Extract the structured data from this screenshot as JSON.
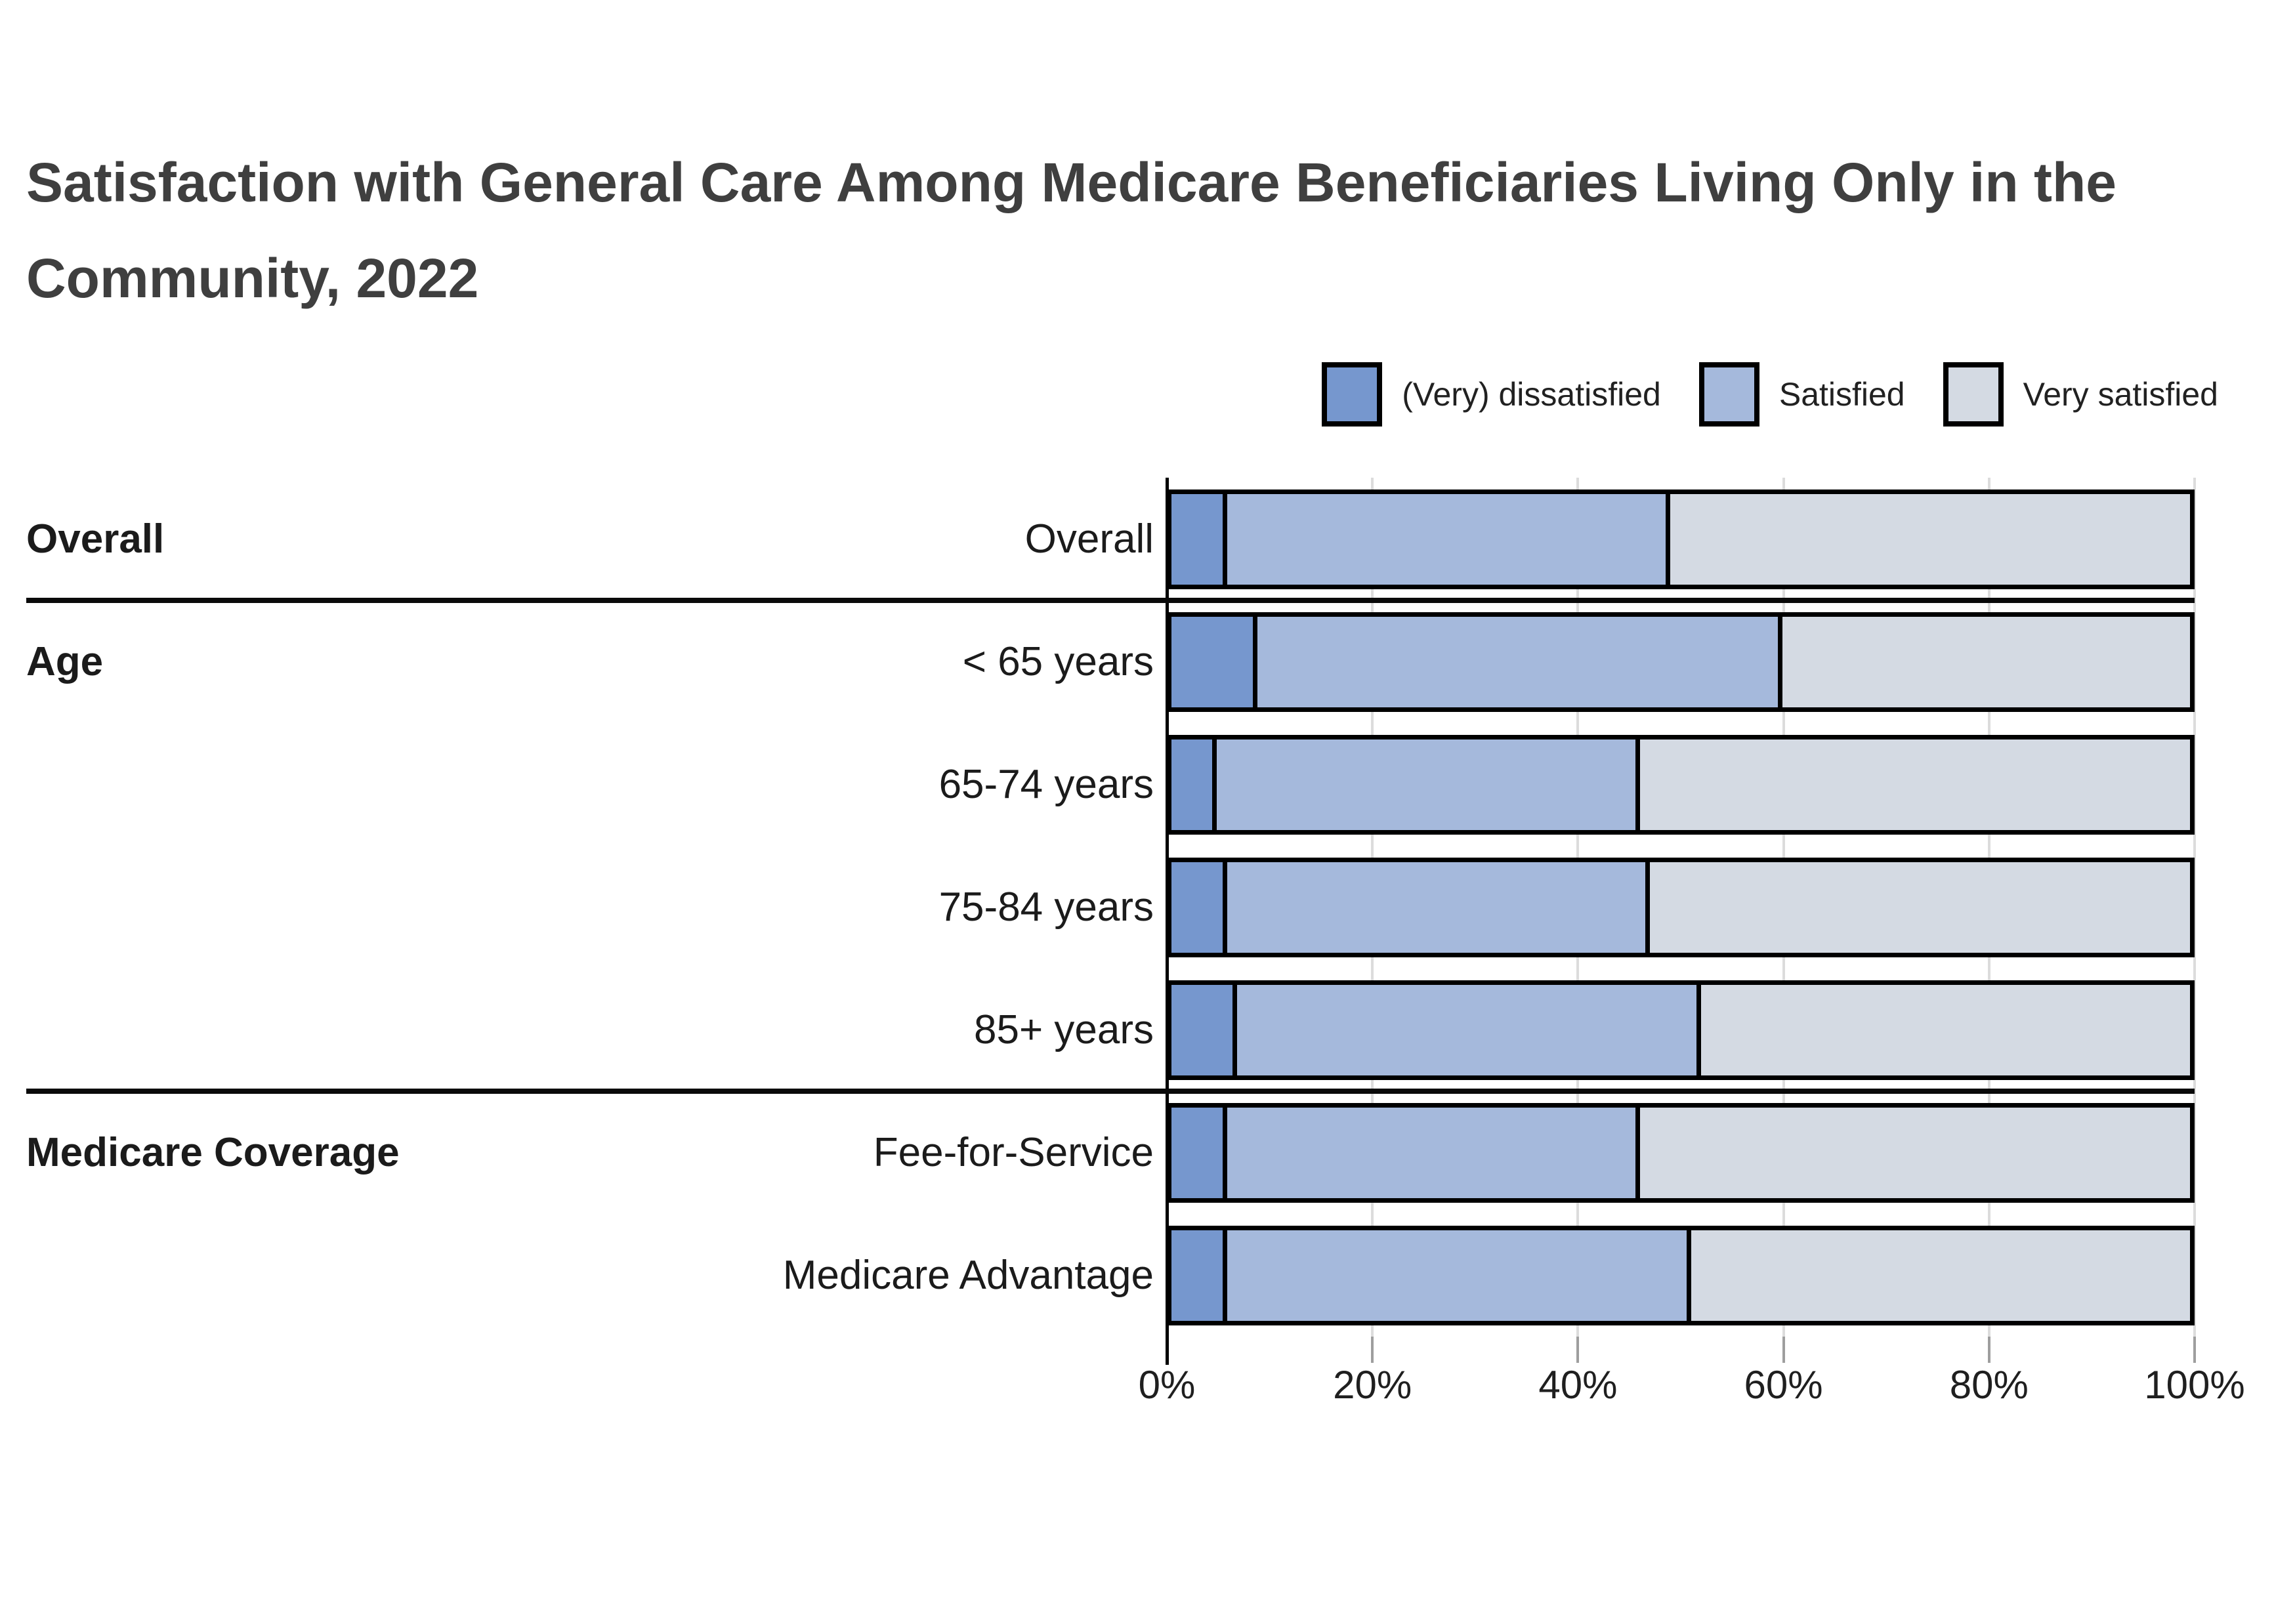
{
  "title": "Satisfaction with General Care Among Medicare Beneficiaries Living Only in the Community, 2022",
  "legend": [
    {
      "label": "(Very) dissatisfied",
      "color": "#7697CE"
    },
    {
      "label": "Satisfied",
      "color": "#A5B9DC"
    },
    {
      "label": "Very satisfied",
      "color": "#D4DAE3"
    }
  ],
  "groups": [
    {
      "label": "Overall",
      "row_index": 0
    },
    {
      "label": "Age",
      "row_index": 1
    },
    {
      "label": "Medicare Coverage",
      "row_index": 5
    }
  ],
  "chart_data": {
    "type": "bar",
    "orientation": "horizontal",
    "stacked": true,
    "title": "Satisfaction with General Care Among Medicare Beneficiaries Living Only in the Community, 2022",
    "categories": [
      "Overall",
      "< 65 years",
      "65-74 years",
      "75-84 years",
      "85+ years",
      "Fee-for-Service",
      "Medicare Advantage"
    ],
    "series": [
      {
        "name": "(Very) dissatisfied",
        "color": "#7697CE",
        "values": [
          5,
          8,
          4,
          5,
          6,
          5,
          5
        ]
      },
      {
        "name": "Satisfied",
        "color": "#A5B9DC",
        "values": [
          44,
          52,
          42,
          42,
          46,
          41,
          46
        ]
      },
      {
        "name": "Very satisfied",
        "color": "#D4DAE3",
        "values": [
          51,
          40,
          54,
          53,
          48,
          54,
          49
        ]
      }
    ],
    "xlabel": "",
    "ylabel": "",
    "xlim": [
      0,
      100
    ],
    "x_ticks": [
      "0%",
      "20%",
      "40%",
      "60%",
      "80%",
      "100%"
    ],
    "grid": true,
    "legend_position": "top-right",
    "group_dividers_after_rows": [
      0,
      4
    ]
  }
}
